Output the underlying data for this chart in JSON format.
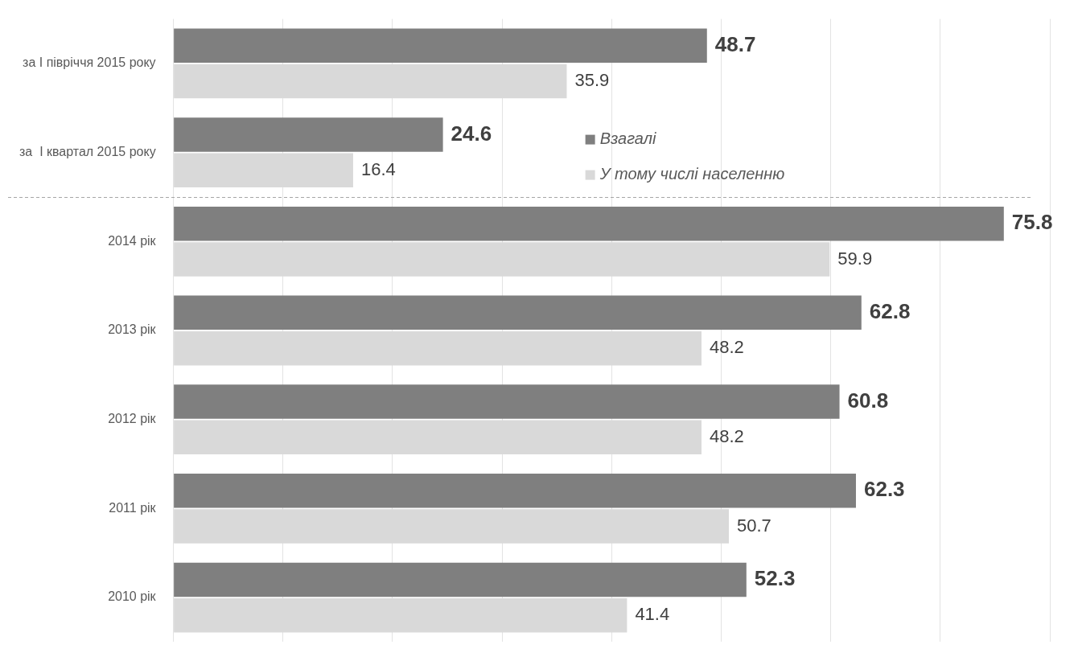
{
  "chart_data": {
    "type": "bar",
    "orientation": "horizontal",
    "categories": [
      "за І півріччя 2015 року",
      "за  І квартал 2015 року",
      "2014 рік",
      "2013 рік",
      "2012 рік",
      "2011 рік",
      "2010 рік"
    ],
    "series": [
      {
        "name": "Взагалі",
        "color": "#7f7f7f",
        "values": [
          48.7,
          24.6,
          75.8,
          62.8,
          60.8,
          62.3,
          52.3
        ]
      },
      {
        "name": "У тому числі населенню",
        "color": "#d9d9d9",
        "values": [
          35.9,
          16.4,
          59.9,
          48.2,
          48.2,
          50.7,
          41.4
        ]
      }
    ],
    "xlim": [
      0,
      80
    ],
    "xticks": [
      {
        "value": 0,
        "label": null
      },
      {
        "value": 10,
        "label": null
      },
      {
        "value": 20,
        "label": null
      },
      {
        "value": 30,
        "label": null
      },
      {
        "value": 40,
        "label": null
      },
      {
        "value": 50,
        "label": null
      },
      {
        "value": 60,
        "label": null
      },
      {
        "value": 70,
        "label": null
      },
      {
        "value": 80,
        "label": null
      }
    ],
    "tick_labels": "y",
    "grid": "x",
    "legend": "top",
    "data_labels": true
  }
}
